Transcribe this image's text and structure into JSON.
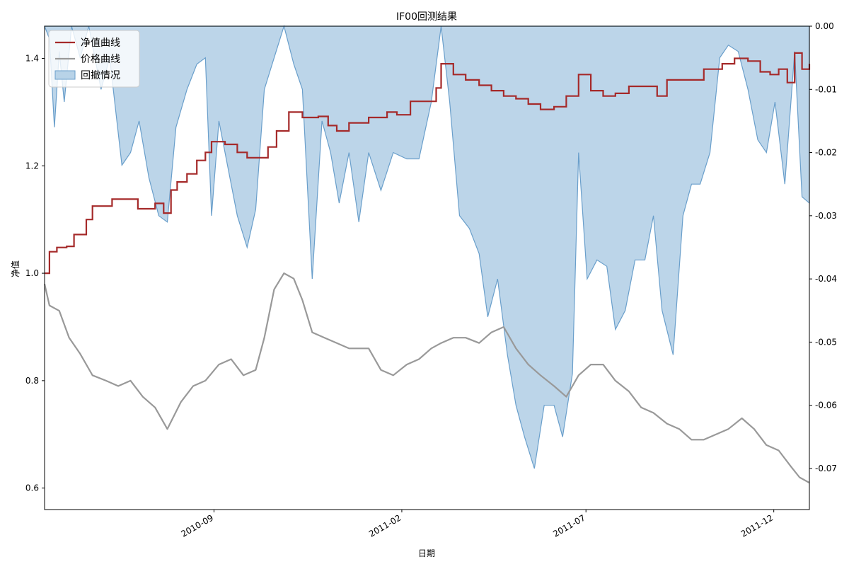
{
  "chart_data": {
    "type": "line",
    "title": "IF00回测结果",
    "xlabel": "日期",
    "ylabel_left": "净值",
    "ylabel_right": "",
    "x_range": [
      "2010-04-16",
      "2011-12-30"
    ],
    "x_ticks": [
      "2010-09",
      "2011-02",
      "2011-07",
      "2011-12"
    ],
    "ylim_left": [
      0.56,
      1.46
    ],
    "ylim_right": [
      -0.0765,
      0.0
    ],
    "y_ticks_left": [
      "0.6",
      "0.8",
      "1.0",
      "1.2",
      "1.4"
    ],
    "y_ticks_right": [
      "-0.07",
      "-0.06",
      "-0.05",
      "-0.04",
      "-0.03",
      "-0.02",
      "-0.01",
      "0.00"
    ],
    "grid": false,
    "legend_position": "top-left",
    "colors": {
      "nav": "#a52a2a",
      "price": "#999999",
      "drawdown_fill": "#b8d3e8",
      "drawdown_edge": "#6a9fcb"
    },
    "series": [
      {
        "name": "净值曲线",
        "axis": "left",
        "points": [
          [
            "2010-04-16",
            1.0
          ],
          [
            "2010-04-20",
            1.04
          ],
          [
            "2010-04-26",
            1.048
          ],
          [
            "2010-05-04",
            1.05
          ],
          [
            "2010-05-10",
            1.072
          ],
          [
            "2010-05-20",
            1.1
          ],
          [
            "2010-05-25",
            1.125
          ],
          [
            "2010-06-04",
            1.125
          ],
          [
            "2010-06-10",
            1.138
          ],
          [
            "2010-06-28",
            1.138
          ],
          [
            "2010-07-01",
            1.12
          ],
          [
            "2010-07-15",
            1.13
          ],
          [
            "2010-07-22",
            1.112
          ],
          [
            "2010-07-28",
            1.155
          ],
          [
            "2010-08-02",
            1.17
          ],
          [
            "2010-08-10",
            1.185
          ],
          [
            "2010-08-18",
            1.21
          ],
          [
            "2010-08-25",
            1.225
          ],
          [
            "2010-08-30",
            1.245
          ],
          [
            "2010-09-10",
            1.24
          ],
          [
            "2010-09-20",
            1.225
          ],
          [
            "2010-09-28",
            1.215
          ],
          [
            "2010-10-08",
            1.215
          ],
          [
            "2010-10-15",
            1.235
          ],
          [
            "2010-10-22",
            1.265
          ],
          [
            "2010-11-01",
            1.3
          ],
          [
            "2010-11-12",
            1.29
          ],
          [
            "2010-11-25",
            1.292
          ],
          [
            "2010-12-03",
            1.275
          ],
          [
            "2010-12-10",
            1.265
          ],
          [
            "2010-12-20",
            1.28
          ],
          [
            "2011-01-05",
            1.29
          ],
          [
            "2011-01-20",
            1.3
          ],
          [
            "2011-01-28",
            1.295
          ],
          [
            "2011-02-08",
            1.32
          ],
          [
            "2011-02-20",
            1.32
          ],
          [
            "2011-03-01",
            1.345
          ],
          [
            "2011-03-05",
            1.39
          ],
          [
            "2011-03-15",
            1.37
          ],
          [
            "2011-03-25",
            1.36
          ],
          [
            "2011-04-05",
            1.35
          ],
          [
            "2011-04-15",
            1.34
          ],
          [
            "2011-04-25",
            1.33
          ],
          [
            "2011-05-05",
            1.325
          ],
          [
            "2011-05-15",
            1.315
          ],
          [
            "2011-05-25",
            1.305
          ],
          [
            "2011-06-05",
            1.31
          ],
          [
            "2011-06-15",
            1.33
          ],
          [
            "2011-06-25",
            1.37
          ],
          [
            "2011-07-05",
            1.34
          ],
          [
            "2011-07-15",
            1.33
          ],
          [
            "2011-07-25",
            1.335
          ],
          [
            "2011-08-05",
            1.348
          ],
          [
            "2011-08-20",
            1.348
          ],
          [
            "2011-08-28",
            1.33
          ],
          [
            "2011-09-05",
            1.36
          ],
          [
            "2011-09-20",
            1.36
          ],
          [
            "2011-10-05",
            1.38
          ],
          [
            "2011-10-20",
            1.39
          ],
          [
            "2011-10-30",
            1.4
          ],
          [
            "2011-11-10",
            1.395
          ],
          [
            "2011-11-20",
            1.375
          ],
          [
            "2011-11-28",
            1.37
          ],
          [
            "2011-12-05",
            1.38
          ],
          [
            "2011-12-12",
            1.355
          ],
          [
            "2011-12-18",
            1.41
          ],
          [
            "2011-12-24",
            1.38
          ],
          [
            "2011-12-30",
            1.39
          ]
        ]
      },
      {
        "name": "价格曲线",
        "axis": "left",
        "points": [
          [
            "2010-04-16",
            0.98
          ],
          [
            "2010-04-20",
            0.94
          ],
          [
            "2010-04-28",
            0.93
          ],
          [
            "2010-05-06",
            0.88
          ],
          [
            "2010-05-15",
            0.85
          ],
          [
            "2010-05-25",
            0.81
          ],
          [
            "2010-06-05",
            0.8
          ],
          [
            "2010-06-15",
            0.79
          ],
          [
            "2010-06-25",
            0.8
          ],
          [
            "2010-07-05",
            0.77
          ],
          [
            "2010-07-15",
            0.75
          ],
          [
            "2010-07-25",
            0.71
          ],
          [
            "2010-08-05",
            0.76
          ],
          [
            "2010-08-15",
            0.79
          ],
          [
            "2010-08-25",
            0.8
          ],
          [
            "2010-09-05",
            0.83
          ],
          [
            "2010-09-15",
            0.84
          ],
          [
            "2010-09-25",
            0.81
          ],
          [
            "2010-10-05",
            0.82
          ],
          [
            "2010-10-12",
            0.88
          ],
          [
            "2010-10-20",
            0.97
          ],
          [
            "2010-10-28",
            1.0
          ],
          [
            "2010-11-05",
            0.99
          ],
          [
            "2010-11-12",
            0.95
          ],
          [
            "2010-11-20",
            0.89
          ],
          [
            "2010-11-30",
            0.88
          ],
          [
            "2010-12-10",
            0.87
          ],
          [
            "2010-12-20",
            0.86
          ],
          [
            "2011-01-05",
            0.86
          ],
          [
            "2011-01-15",
            0.82
          ],
          [
            "2011-01-25",
            0.81
          ],
          [
            "2011-02-05",
            0.83
          ],
          [
            "2011-02-15",
            0.84
          ],
          [
            "2011-02-25",
            0.86
          ],
          [
            "2011-03-05",
            0.87
          ],
          [
            "2011-03-15",
            0.88
          ],
          [
            "2011-03-25",
            0.88
          ],
          [
            "2011-04-05",
            0.87
          ],
          [
            "2011-04-15",
            0.89
          ],
          [
            "2011-04-25",
            0.9
          ],
          [
            "2011-05-05",
            0.86
          ],
          [
            "2011-05-15",
            0.83
          ],
          [
            "2011-05-25",
            0.81
          ],
          [
            "2011-06-05",
            0.79
          ],
          [
            "2011-06-15",
            0.77
          ],
          [
            "2011-06-25",
            0.81
          ],
          [
            "2011-07-05",
            0.83
          ],
          [
            "2011-07-15",
            0.83
          ],
          [
            "2011-07-25",
            0.8
          ],
          [
            "2011-08-05",
            0.78
          ],
          [
            "2011-08-15",
            0.75
          ],
          [
            "2011-08-25",
            0.74
          ],
          [
            "2011-09-05",
            0.72
          ],
          [
            "2011-09-15",
            0.71
          ],
          [
            "2011-09-25",
            0.69
          ],
          [
            "2011-10-05",
            0.69
          ],
          [
            "2011-10-15",
            0.7
          ],
          [
            "2011-10-25",
            0.71
          ],
          [
            "2011-11-05",
            0.73
          ],
          [
            "2011-11-15",
            0.71
          ],
          [
            "2011-11-25",
            0.68
          ],
          [
            "2011-12-05",
            0.67
          ],
          [
            "2011-12-15",
            0.64
          ],
          [
            "2011-12-22",
            0.62
          ],
          [
            "2011-12-30",
            0.61
          ]
        ]
      },
      {
        "name": "回撤情况",
        "axis": "right",
        "type": "area",
        "points": [
          [
            "2010-04-16",
            0.0
          ],
          [
            "2010-04-20",
            -0.002
          ],
          [
            "2010-04-24",
            -0.016
          ],
          [
            "2010-04-28",
            -0.004
          ],
          [
            "2010-05-02",
            -0.012
          ],
          [
            "2010-05-08",
            0.0
          ],
          [
            "2010-05-15",
            -0.005
          ],
          [
            "2010-05-22",
            0.0
          ],
          [
            "2010-06-01",
            -0.01
          ],
          [
            "2010-06-08",
            -0.005
          ],
          [
            "2010-06-18",
            -0.022
          ],
          [
            "2010-06-25",
            -0.02
          ],
          [
            "2010-07-02",
            -0.015
          ],
          [
            "2010-07-10",
            -0.024
          ],
          [
            "2010-07-18",
            -0.03
          ],
          [
            "2010-07-25",
            -0.031
          ],
          [
            "2010-08-01",
            -0.016
          ],
          [
            "2010-08-10",
            -0.01
          ],
          [
            "2010-08-18",
            -0.006
          ],
          [
            "2010-08-25",
            -0.005
          ],
          [
            "2010-08-30",
            -0.03
          ],
          [
            "2010-09-05",
            -0.015
          ],
          [
            "2010-09-12",
            -0.022
          ],
          [
            "2010-09-20",
            -0.03
          ],
          [
            "2010-09-28",
            -0.035
          ],
          [
            "2010-10-05",
            -0.029
          ],
          [
            "2010-10-12",
            -0.01
          ],
          [
            "2010-10-20",
            -0.005
          ],
          [
            "2010-10-28",
            0.0
          ],
          [
            "2010-11-05",
            -0.006
          ],
          [
            "2010-11-12",
            -0.01
          ],
          [
            "2010-11-20",
            -0.04
          ],
          [
            "2010-11-28",
            -0.015
          ],
          [
            "2010-12-05",
            -0.02
          ],
          [
            "2010-12-12",
            -0.028
          ],
          [
            "2010-12-20",
            -0.02
          ],
          [
            "2010-12-28",
            -0.031
          ],
          [
            "2011-01-05",
            -0.02
          ],
          [
            "2011-01-15",
            -0.026
          ],
          [
            "2011-01-25",
            -0.02
          ],
          [
            "2011-02-05",
            -0.021
          ],
          [
            "2011-02-15",
            -0.021
          ],
          [
            "2011-02-25",
            -0.012
          ],
          [
            "2011-03-05",
            0.0
          ],
          [
            "2011-03-12",
            -0.012
          ],
          [
            "2011-03-20",
            -0.03
          ],
          [
            "2011-03-28",
            -0.032
          ],
          [
            "2011-04-05",
            -0.036
          ],
          [
            "2011-04-12",
            -0.046
          ],
          [
            "2011-04-20",
            -0.04
          ],
          [
            "2011-04-28",
            -0.052
          ],
          [
            "2011-05-05",
            -0.06
          ],
          [
            "2011-05-12",
            -0.065
          ],
          [
            "2011-05-20",
            -0.07
          ],
          [
            "2011-05-28",
            -0.06
          ],
          [
            "2011-06-05",
            -0.06
          ],
          [
            "2011-06-12",
            -0.065
          ],
          [
            "2011-06-20",
            -0.055
          ],
          [
            "2011-06-25",
            -0.02
          ],
          [
            "2011-07-02",
            -0.04
          ],
          [
            "2011-07-10",
            -0.037
          ],
          [
            "2011-07-18",
            -0.038
          ],
          [
            "2011-07-25",
            -0.048
          ],
          [
            "2011-08-02",
            -0.045
          ],
          [
            "2011-08-10",
            -0.037
          ],
          [
            "2011-08-18",
            -0.037
          ],
          [
            "2011-08-25",
            -0.03
          ],
          [
            "2011-09-01",
            -0.045
          ],
          [
            "2011-09-10",
            -0.052
          ],
          [
            "2011-09-18",
            -0.03
          ],
          [
            "2011-09-25",
            -0.025
          ],
          [
            "2011-10-02",
            -0.025
          ],
          [
            "2011-10-10",
            -0.02
          ],
          [
            "2011-10-18",
            -0.005
          ],
          [
            "2011-10-25",
            -0.003
          ],
          [
            "2011-11-02",
            -0.004
          ],
          [
            "2011-11-10",
            -0.01
          ],
          [
            "2011-11-18",
            -0.018
          ],
          [
            "2011-11-25",
            -0.02
          ],
          [
            "2011-12-02",
            -0.012
          ],
          [
            "2011-12-10",
            -0.025
          ],
          [
            "2011-12-18",
            -0.004
          ],
          [
            "2011-12-24",
            -0.027
          ],
          [
            "2011-12-30",
            -0.028
          ]
        ]
      }
    ]
  }
}
